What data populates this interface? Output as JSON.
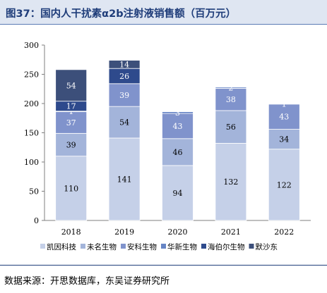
{
  "header": {
    "title": "图37：国内人干扰素α2b注射液销售额（百万元）"
  },
  "source": {
    "text": "数据来源：开思数据库，东吴证券研究所"
  },
  "colors": {
    "title_bg": "#dfe6f2",
    "title_text": "#1f3d7a",
    "series": [
      "#c5d0e8",
      "#a3b4da",
      "#8093cc",
      "#6685c5",
      "#2e4a8c",
      "#3c4f7a"
    ]
  },
  "chart_data": {
    "type": "bar",
    "stacked": true,
    "title": "",
    "xlabel": "",
    "ylabel": "",
    "ylim": [
      0,
      300
    ],
    "yticks": [
      0,
      50,
      100,
      150,
      200,
      250,
      300
    ],
    "grid": false,
    "legend_position": "bottom",
    "categories": [
      "2018",
      "2019",
      "2020",
      "2021",
      "2022"
    ],
    "series": [
      {
        "name": "凯因科技",
        "color": "#c5d0e8",
        "values": [
          110,
          141,
          94,
          132,
          122
        ],
        "labels": [
          "110",
          "141",
          "94",
          "132",
          "122"
        ]
      },
      {
        "name": "未名生物",
        "color": "#a3b4da",
        "values": [
          39,
          54,
          46,
          56,
          34
        ],
        "labels": [
          "39",
          "54",
          "46",
          "56",
          "34"
        ]
      },
      {
        "name": "安科生物",
        "color": "#8093cc",
        "values": [
          37,
          39,
          43,
          38,
          43
        ],
        "labels": [
          "37",
          "39",
          "43",
          "38",
          "43"
        ]
      },
      {
        "name": "华新生物",
        "color": "#6685c5",
        "values": [
          1,
          0,
          3,
          2,
          1
        ],
        "labels": [
          "1",
          "",
          "3",
          "2",
          "1"
        ]
      },
      {
        "name": "海伯尔生物",
        "color": "#2e4a8c",
        "values": [
          17,
          26,
          0,
          0,
          0
        ],
        "labels": [
          "17",
          "26",
          "",
          "",
          ""
        ]
      },
      {
        "name": "默沙东",
        "color": "#3c4f7a",
        "values": [
          54,
          14,
          0,
          0,
          0
        ],
        "labels": [
          "54",
          "14",
          "",
          "",
          ""
        ]
      }
    ]
  }
}
